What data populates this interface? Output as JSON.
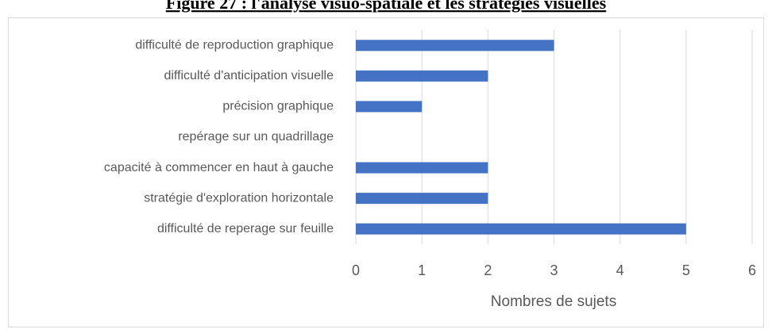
{
  "chart_data": {
    "type": "bar",
    "orientation": "horizontal",
    "title": "Figure 27 : l'analyse visuo-spatiale et les stratégies visuelles",
    "x_label": "Nombres de sujets",
    "categories": [
      "difficulté de reproduction graphique",
      "difficulté d'anticipation visuelle",
      "précision graphique",
      "repérage sur un quadrillage",
      "capacité à commencer en haut à gauche",
      "stratégie d'exploration horizontale",
      "difficulté de reperage sur feuille"
    ],
    "values": [
      3,
      2,
      1,
      0,
      2,
      2,
      5
    ],
    "color": "#4472c4",
    "xlim": [
      0,
      6
    ],
    "xticks": [
      0,
      1,
      2,
      3,
      4,
      5,
      6
    ],
    "grid": true
  }
}
